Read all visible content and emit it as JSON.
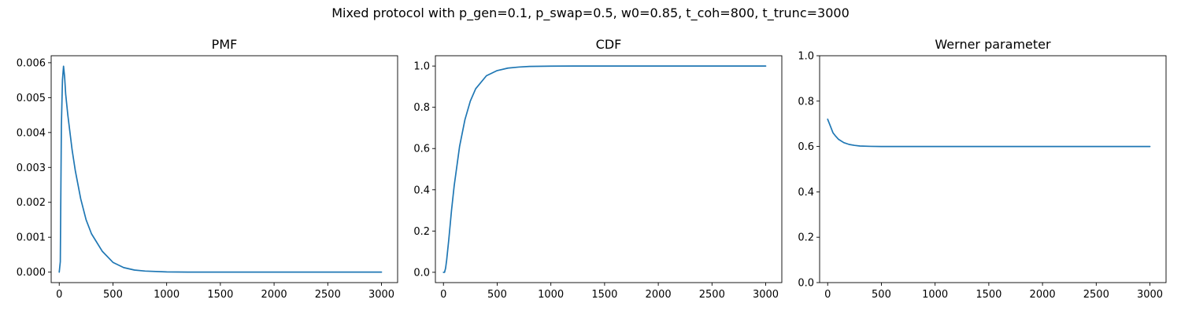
{
  "figure": {
    "suptitle": "Mixed protocol with p_gen=0.1, p_swap=0.5, w0=0.85, t_coh=800, t_trunc=3000"
  },
  "chart_data": [
    {
      "type": "line",
      "title": "PMF",
      "xlabel": "",
      "ylabel": "",
      "xlim": [
        -75,
        3150
      ],
      "ylim": [
        -0.0003,
        0.0062
      ],
      "xticks": [
        0,
        500,
        1000,
        1500,
        2000,
        2500,
        3000
      ],
      "yticks": [
        0.0,
        0.001,
        0.002,
        0.003,
        0.004,
        0.005,
        0.006
      ],
      "xtick_labels": [
        "0",
        "500",
        "1000",
        "1500",
        "2000",
        "2500",
        "3000"
      ],
      "ytick_labels": [
        "0.000",
        "0.001",
        "0.002",
        "0.003",
        "0.004",
        "0.005",
        "0.006"
      ],
      "grid": false,
      "series": [
        {
          "color": "#1f77b4",
          "x": [
            0,
            10,
            20,
            30,
            40,
            50,
            60,
            80,
            100,
            120,
            150,
            200,
            250,
            300,
            400,
            500,
            600,
            700,
            800,
            1000,
            1200,
            1500,
            2000,
            2500,
            3000
          ],
          "y": [
            0.0,
            0.0003,
            0.0042,
            0.0055,
            0.0059,
            0.0056,
            0.0051,
            0.0045,
            0.004,
            0.0035,
            0.0029,
            0.0021,
            0.0015,
            0.0011,
            0.0006,
            0.00028,
            0.00013,
            6e-05,
            3e-05,
            6e-06,
            1e-06,
            0.0,
            0.0,
            0.0,
            0.0
          ]
        }
      ]
    },
    {
      "type": "line",
      "title": "CDF",
      "xlabel": "",
      "ylabel": "",
      "xlim": [
        -75,
        3150
      ],
      "ylim": [
        -0.05,
        1.05
      ],
      "xticks": [
        0,
        500,
        1000,
        1500,
        2000,
        2500,
        3000
      ],
      "yticks": [
        0.0,
        0.2,
        0.4,
        0.6,
        0.8,
        1.0
      ],
      "xtick_labels": [
        "0",
        "500",
        "1000",
        "1500",
        "2000",
        "2500",
        "3000"
      ],
      "ytick_labels": [
        "0.0",
        "0.2",
        "0.4",
        "0.6",
        "0.8",
        "1.0"
      ],
      "grid": false,
      "series": [
        {
          "color": "#1f77b4",
          "x": [
            0,
            10,
            20,
            30,
            50,
            75,
            100,
            150,
            200,
            250,
            300,
            400,
            500,
            600,
            700,
            800,
            1000,
            1200,
            1500,
            2000,
            2500,
            3000
          ],
          "y": [
            0.0,
            0.0,
            0.02,
            0.06,
            0.16,
            0.3,
            0.42,
            0.61,
            0.74,
            0.83,
            0.89,
            0.953,
            0.978,
            0.99,
            0.995,
            0.998,
            0.9995,
            1.0,
            1.0,
            1.0,
            1.0,
            1.0
          ]
        }
      ]
    },
    {
      "type": "line",
      "title": "Werner parameter",
      "xlabel": "",
      "ylabel": "",
      "xlim": [
        -75,
        3150
      ],
      "ylim": [
        0.0,
        1.0
      ],
      "xticks": [
        0,
        500,
        1000,
        1500,
        2000,
        2500,
        3000
      ],
      "yticks": [
        0.0,
        0.2,
        0.4,
        0.6,
        0.8,
        1.0
      ],
      "xtick_labels": [
        "0",
        "500",
        "1000",
        "1500",
        "2000",
        "2500",
        "3000"
      ],
      "ytick_labels": [
        "0.0",
        "0.2",
        "0.4",
        "0.6",
        "0.8",
        "1.0"
      ],
      "grid": false,
      "series": [
        {
          "color": "#1f77b4",
          "x": [
            0,
            25,
            50,
            75,
            100,
            150,
            200,
            250,
            300,
            400,
            500,
            700,
            1000,
            1500,
            2000,
            2500,
            3000
          ],
          "y": [
            0.72,
            0.69,
            0.66,
            0.645,
            0.632,
            0.617,
            0.609,
            0.605,
            0.602,
            0.6005,
            0.6,
            0.6,
            0.6,
            0.6,
            0.6,
            0.6,
            0.6
          ]
        }
      ]
    }
  ]
}
